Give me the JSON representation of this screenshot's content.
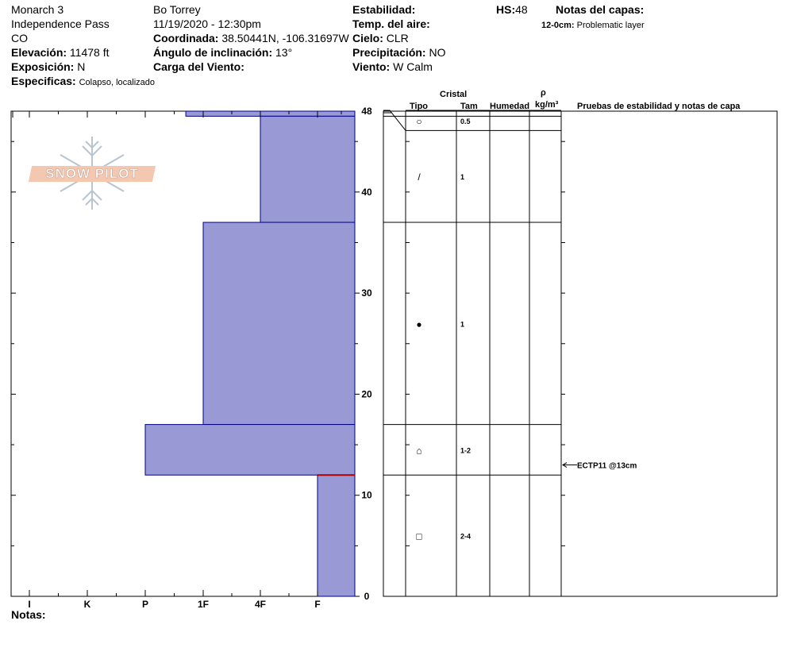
{
  "header": {
    "location": "Monarch 3",
    "route": "Independence Pass",
    "state": "CO",
    "elevation_label": "Elevación:",
    "elevation_value": "11478 ft",
    "aspect_label": "Exposición:",
    "aspect_value": "N",
    "specifics_label": "Especificas:",
    "specifics_value": "Colapso, localizado",
    "observer": "Bo Torrey",
    "datetime": "11/19/2020 - 12:30pm",
    "coord_label": "Coordinada:",
    "coord_value": "38.50441N, -106.31697W",
    "slope_label": "Ángulo de inclinación:",
    "slope_value": "13°",
    "wind_load_label": "Carga del Viento:",
    "wind_load_value": "",
    "stability_label": "Estabilidad:",
    "stability_value": "",
    "air_temp_label": "Temp. del aire:",
    "air_temp_value": "",
    "sky_label": "Cielo:",
    "sky_value": "CLR",
    "precip_label": "Precipitación:",
    "precip_value": "NO",
    "wind_label": "Viento:",
    "wind_value": "W Calm",
    "hs_label": "HS:",
    "hs_value": "48",
    "layer_notes_label": "Notas del capas:",
    "layer_note_depth": "12-0cm:",
    "layer_note_text": "Problematic layer"
  },
  "notes_label": "Notas:",
  "logo_text": "SNOW PILOT",
  "columns": {
    "crystal": "Cristal",
    "type": "Tipo",
    "size": "Tam",
    "moisture": "Humedad",
    "rho": "ρ",
    "density_unit": "kg/m³",
    "tests": "Pruebas de estabilidad y notas de capa"
  },
  "colors": {
    "hardness_fill": "#9999d6",
    "hardness_stroke": "#000080",
    "weak_layer_line": "#b00000"
  },
  "chart_data": {
    "type": "snow-profile",
    "hardness_scale": [
      "I",
      "K",
      "P",
      "1F",
      "4F",
      "F"
    ],
    "depth_axis": {
      "range": [
        0,
        48
      ],
      "ticks": [
        0,
        10,
        20,
        30,
        40,
        48
      ]
    },
    "layers": [
      {
        "top": 48,
        "bottom": 47.5,
        "hardness": 2.7,
        "type": "○",
        "size": "0.5"
      },
      {
        "top": 47.5,
        "bottom": 37,
        "hardness": 4,
        "type": "/",
        "size": "1"
      },
      {
        "top": 37,
        "bottom": 17,
        "hardness": 3,
        "type": "●",
        "size": "1"
      },
      {
        "top": 17,
        "bottom": 12,
        "hardness": 2,
        "type": "⌂",
        "size": "1-2"
      },
      {
        "top": 12,
        "bottom": 0,
        "hardness": 5,
        "type": "□",
        "size": "2-4"
      }
    ],
    "weak_layer_depth": 12,
    "tests": [
      {
        "depth": 13,
        "label": "ECTP11 @13cm"
      }
    ]
  }
}
